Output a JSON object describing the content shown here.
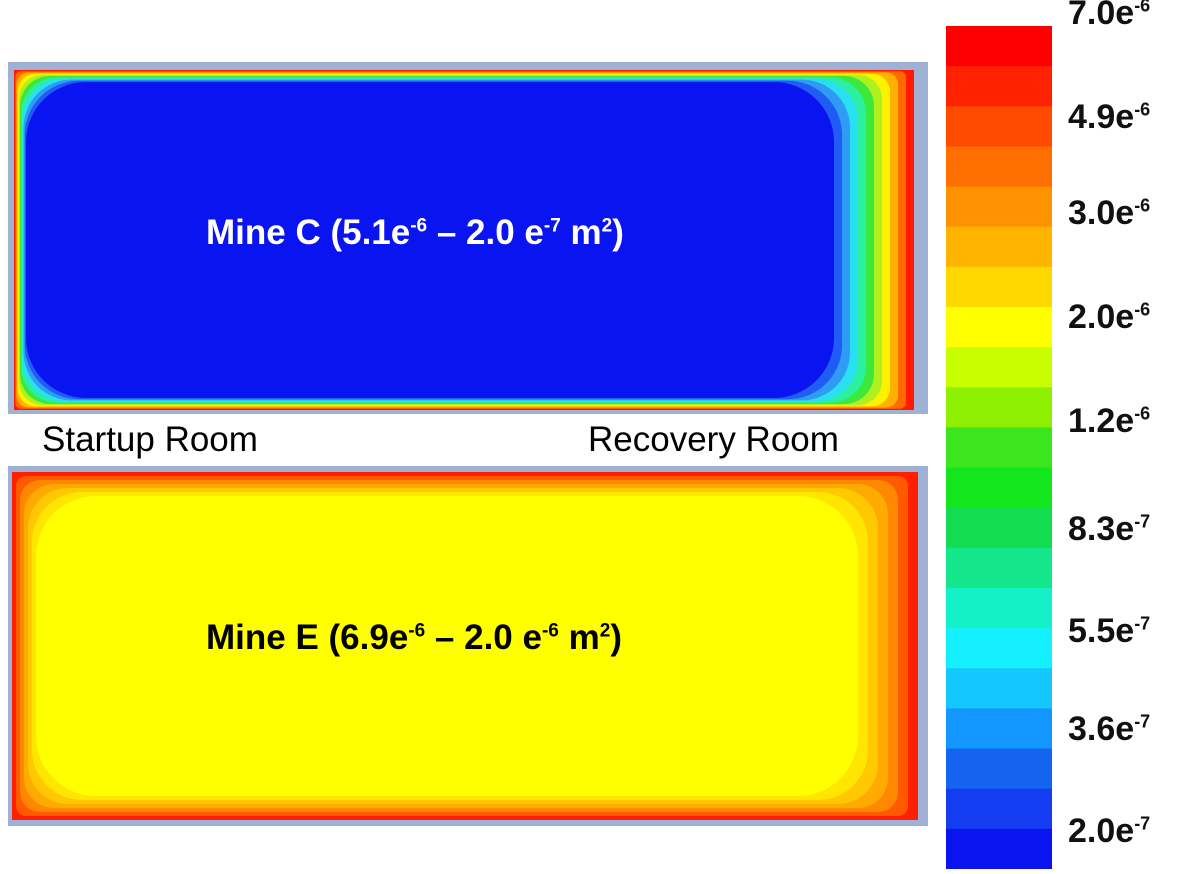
{
  "panels": [
    {
      "id": "mine-c",
      "label_prefix": "Mine C (5.1e",
      "max_exp": "-6",
      "mid": " – 2.0 e",
      "min_exp": "-7",
      "unit": " m",
      "unit_exp": "2",
      "background_color": "#0a14f0",
      "gradient_colors": [
        "#0a14f0",
        "#1e5cf5",
        "#2f9bf5",
        "#29e0f0",
        "#2bf0a0",
        "#3ce83c",
        "#aef020",
        "#fff200",
        "#ffb000",
        "#ff6a00",
        "#ff1a00"
      ]
    },
    {
      "id": "mine-e",
      "label_prefix": "Mine E (6.9e",
      "max_exp": "-6",
      "mid": " – 2.0 e",
      "min_exp": "-6",
      "unit": " m",
      "unit_exp": "2",
      "background_color": "#ffff00",
      "gradient_colors": [
        "#ffff00",
        "#ffe600",
        "#ffc800",
        "#ffaa00",
        "#ff8800",
        "#ff5a00",
        "#ff2000"
      ]
    }
  ],
  "rooms": {
    "startup": "Startup Room",
    "recovery": "Recovery Room"
  },
  "colorbar": {
    "colors": [
      "#ff0000",
      "#ff2200",
      "#ff4a00",
      "#ff6e00",
      "#ff9200",
      "#ffb400",
      "#ffd800",
      "#ffff00",
      "#c8ff00",
      "#8cf000",
      "#3ce61e",
      "#14e61e",
      "#14dc50",
      "#14e68c",
      "#14f0c8",
      "#14f0ff",
      "#14c8ff",
      "#1496ff",
      "#1464f0",
      "#143cf0",
      "#0a14f0"
    ],
    "ticks": [
      {
        "base": "7.0e",
        "exp": "-6"
      },
      {
        "base": "4.9e",
        "exp": "-6"
      },
      {
        "base": "3.0e",
        "exp": "-6"
      },
      {
        "base": "2.0e",
        "exp": "-6"
      },
      {
        "base": "1.2e",
        "exp": "-6"
      },
      {
        "base": "8.3e",
        "exp": "-7"
      },
      {
        "base": "5.5e",
        "exp": "-7"
      },
      {
        "base": "3.6e",
        "exp": "-7"
      },
      {
        "base": "2.0e",
        "exp": "-7"
      }
    ]
  }
}
